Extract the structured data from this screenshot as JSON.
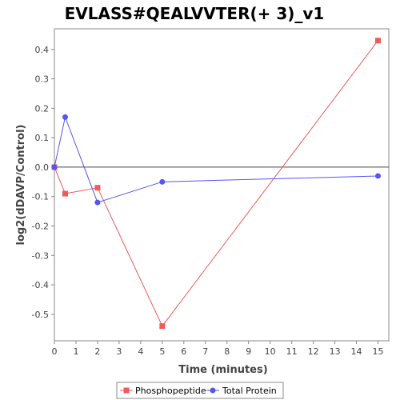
{
  "chart_data": {
    "type": "line",
    "title": "EVLASS#QEALVVTER(+ 3)_v1",
    "xlabel": "Time (minutes)",
    "ylabel": "log2(dDAVP/Control)",
    "xlim": [
      0,
      15.5
    ],
    "ylim": [
      -0.59,
      0.47
    ],
    "x_ticks": [
      0,
      1,
      2,
      3,
      4,
      5,
      6,
      7,
      8,
      9,
      10,
      11,
      12,
      13,
      14,
      15
    ],
    "y_ticks": [
      -0.5,
      -0.4,
      -0.3,
      -0.2,
      -0.1,
      0.0,
      0.1,
      0.2,
      0.3,
      0.4
    ],
    "y_tick_labels": [
      "-0.5",
      "-0.4",
      "-0.3",
      "-0.2",
      "-0.1",
      "0.0",
      "0.1",
      "0.2",
      "0.3",
      "0.4"
    ],
    "grid": false,
    "zero_line": true,
    "legend_position": "bottom",
    "series": [
      {
        "name": "Phosphopeptide",
        "color": "#f05a5a",
        "marker": "square",
        "points": [
          [
            0,
            0.0
          ],
          [
            0.5,
            -0.09
          ],
          [
            2,
            -0.07
          ],
          [
            5,
            -0.54
          ],
          [
            15,
            0.43
          ]
        ]
      },
      {
        "name": "Total Protein",
        "color": "#5555f0",
        "marker": "circle",
        "points": [
          [
            0,
            0.0
          ],
          [
            0.5,
            0.17
          ],
          [
            2,
            -0.12
          ],
          [
            5,
            -0.05
          ],
          [
            15,
            -0.03
          ]
        ]
      }
    ]
  }
}
